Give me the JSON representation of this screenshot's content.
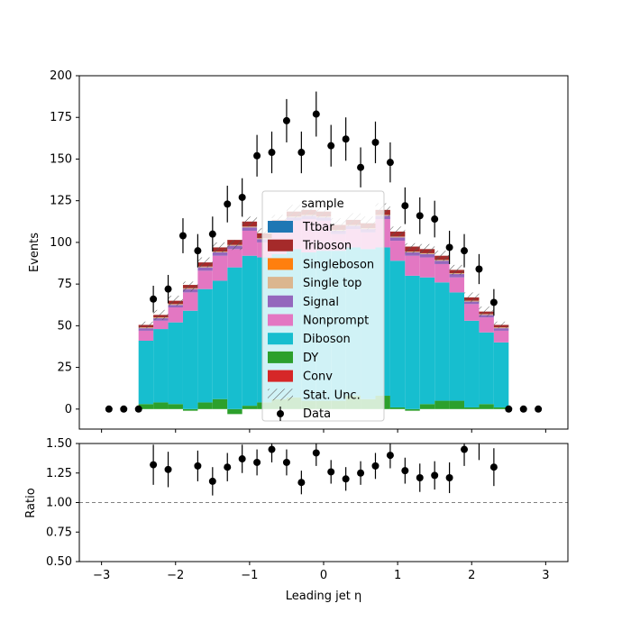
{
  "chart_data": [
    {
      "panel": "main",
      "type": "stacked_step_histogram",
      "ylabel": "Events",
      "xlim": [
        -3.3,
        3.3
      ],
      "ylim": [
        -12,
        200
      ],
      "yticks": [
        0,
        25,
        50,
        75,
        100,
        125,
        150,
        175,
        200
      ],
      "bin_edges": [
        -2.5,
        -2.3,
        -2.1,
        -1.9,
        -1.7,
        -1.5,
        -1.3,
        -1.1,
        -0.9,
        -0.7,
        -0.5,
        -0.3,
        -0.1,
        0.1,
        0.3,
        0.5,
        0.7,
        0.9,
        1.1,
        1.3,
        1.5,
        1.7,
        1.9,
        2.1,
        2.3,
        2.5
      ],
      "series": [
        {
          "name": "DY",
          "color": "#2ca02c",
          "values": [
            3,
            4,
            3,
            -1,
            4,
            6,
            -3,
            2,
            4,
            6,
            7,
            5,
            5,
            5,
            8,
            6,
            8,
            1,
            -1,
            3,
            5,
            5,
            1,
            3,
            1
          ]
        },
        {
          "name": "Diboson",
          "color": "#17becf",
          "values": [
            38,
            44,
            49,
            59,
            68,
            71,
            85,
            90,
            87,
            87,
            89,
            89,
            90,
            90,
            89,
            90,
            89,
            88,
            80,
            76,
            71,
            65,
            52,
            43,
            39
          ]
        },
        {
          "name": "Nonprompt",
          "color": "#e377c2",
          "values": [
            6,
            5,
            9,
            11,
            11,
            15,
            11,
            15,
            9,
            15,
            17,
            20,
            18,
            10,
            11,
            10,
            17,
            12,
            12,
            12,
            11,
            9,
            10,
            9,
            7
          ]
        },
        {
          "name": "Signal",
          "color": "#9467bd",
          "values": [
            1.5,
            1.5,
            1.5,
            2,
            2,
            2,
            2,
            2,
            2,
            2,
            2,
            2,
            2,
            2,
            2,
            2,
            2,
            2,
            2,
            2,
            2,
            2,
            1.5,
            1.5,
            1.5
          ]
        },
        {
          "name": "Single top",
          "color": "#dbb68f",
          "values": [
            0.5,
            0.5,
            0.5,
            0.5,
            0.5,
            0.5,
            0.5,
            0.5,
            0.5,
            0.5,
            0.5,
            0.5,
            0.5,
            0.5,
            0.5,
            0.5,
            0.5,
            0.5,
            0.5,
            0.5,
            0.5,
            0.5,
            0.5,
            0.5,
            0.5
          ]
        },
        {
          "name": "Triboson",
          "color": "#a52a2a",
          "values": [
            1.5,
            1.5,
            2,
            2,
            2.5,
            2.5,
            3,
            3,
            3,
            3,
            3,
            3,
            3,
            3,
            3,
            3,
            3,
            3,
            3,
            2.5,
            2.5,
            2,
            2,
            1.5,
            1.5
          ]
        },
        {
          "name": "Singleboson",
          "color": "#ff7f0e",
          "values": [
            0,
            0,
            0,
            0,
            0,
            0,
            0,
            0,
            0,
            0,
            0,
            0,
            0,
            0,
            0,
            0,
            0,
            0,
            0,
            0,
            0,
            0,
            0,
            0,
            0
          ]
        },
        {
          "name": "Ttbar",
          "color": "#1f77b4",
          "values": [
            0,
            0,
            0,
            0,
            0,
            0,
            0,
            0,
            0,
            0,
            0,
            0,
            0,
            0,
            0,
            0,
            0,
            0,
            0,
            0,
            0,
            0,
            0,
            0,
            0
          ]
        },
        {
          "name": "Conv",
          "color": "#d62728",
          "values": [
            0,
            0,
            0,
            0,
            0,
            0,
            0,
            0,
            0,
            0,
            0,
            0,
            0,
            0,
            0,
            0,
            0,
            0,
            0,
            0,
            0,
            0,
            0,
            0,
            0
          ]
        }
      ],
      "stat_unc": [
        2,
        3,
        3,
        3,
        3,
        3,
        3,
        3,
        3,
        3,
        4,
        4,
        4,
        4,
        4,
        4,
        4,
        3,
        3,
        3,
        3,
        3,
        3,
        3,
        2
      ],
      "data": {
        "name": "Data",
        "x": [
          -2.9,
          -2.7,
          -2.5,
          -2.3,
          -2.1,
          -1.9,
          -1.7,
          -1.5,
          -1.3,
          -1.1,
          -0.9,
          -0.7,
          -0.5,
          -0.3,
          -0.1,
          0.1,
          0.3,
          0.5,
          0.7,
          0.9,
          1.1,
          1.3,
          1.5,
          1.7,
          1.9,
          2.1,
          2.3,
          2.5,
          2.7,
          2.9
        ],
        "y": [
          0,
          0,
          0,
          66,
          72,
          104,
          95,
          105,
          123,
          127,
          152,
          154,
          173,
          154,
          177,
          158,
          162,
          145,
          160,
          148,
          122,
          116,
          114,
          97,
          95,
          84,
          64,
          0,
          0,
          0
        ],
        "err": [
          0,
          0,
          0,
          8,
          8.5,
          10.5,
          10,
          10.5,
          11,
          11.5,
          12.5,
          12.5,
          13,
          12.5,
          13.5,
          12.5,
          13,
          12,
          12.5,
          12,
          11,
          11,
          11,
          10,
          10,
          9,
          8,
          0,
          0,
          0
        ]
      },
      "legend": {
        "title": "sample",
        "location": "center",
        "entries": [
          "Ttbar",
          "Triboson",
          "Singleboson",
          "Single top",
          "Signal",
          "Nonprompt",
          "Diboson",
          "DY",
          "Conv",
          "Stat. Unc.",
          "Data"
        ]
      }
    },
    {
      "panel": "ratio",
      "type": "scatter",
      "xlabel": "Leading jet  η",
      "ylabel": "Ratio",
      "xlim": [
        -3.3,
        3.3
      ],
      "ylim": [
        0.5,
        1.5
      ],
      "yticks": [
        "0.50",
        "0.75",
        "1.00",
        "1.25",
        "1.50"
      ],
      "xticks": [
        "−3",
        "−2",
        "−1",
        "0",
        "1",
        "2",
        "3"
      ],
      "reference_line": 1.0,
      "x": [
        -2.3,
        -2.1,
        -1.7,
        -1.5,
        -1.3,
        -1.1,
        -0.9,
        -0.7,
        -0.5,
        -0.3,
        -0.1,
        0.1,
        0.3,
        0.5,
        0.7,
        0.9,
        1.1,
        1.3,
        1.5,
        1.7,
        1.9,
        2.1,
        2.3
      ],
      "y": [
        1.32,
        1.28,
        1.31,
        1.18,
        1.3,
        1.37,
        1.34,
        1.45,
        1.34,
        1.17,
        1.42,
        1.26,
        1.2,
        1.25,
        1.31,
        1.4,
        1.27,
        1.21,
        1.23,
        1.21,
        1.45,
        1.51,
        1.3
      ],
      "err": [
        0.17,
        0.15,
        0.13,
        0.12,
        0.12,
        0.12,
        0.11,
        0.11,
        0.11,
        0.1,
        0.11,
        0.1,
        0.1,
        0.1,
        0.11,
        0.11,
        0.11,
        0.12,
        0.12,
        0.13,
        0.14,
        0.15,
        0.16
      ]
    }
  ]
}
